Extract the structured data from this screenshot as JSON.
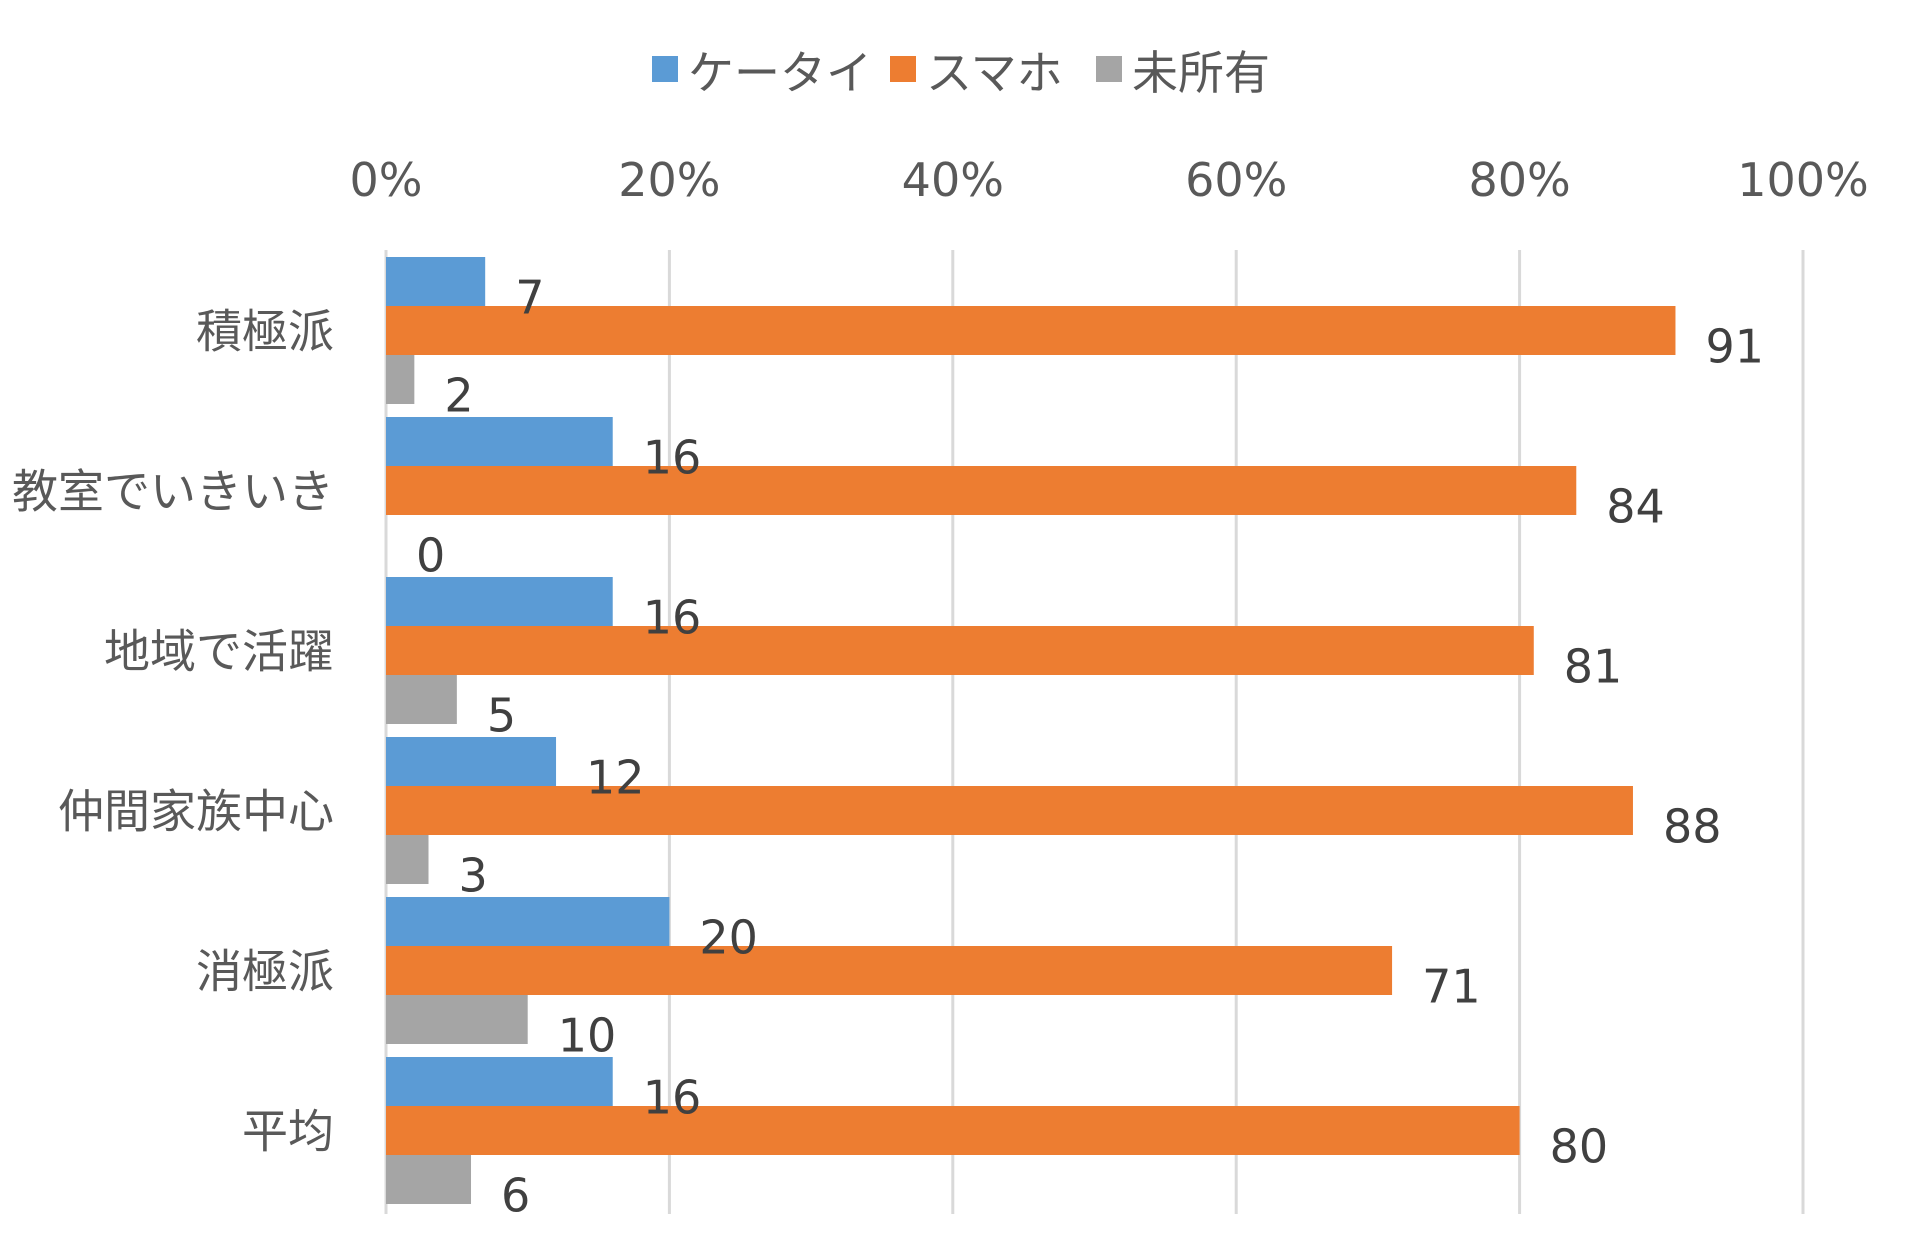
{
  "chart_data": {
    "type": "bar",
    "orientation": "horizontal",
    "categories": [
      "積極派",
      "教室でいきいき",
      "地域で活躍",
      "仲間家族中心",
      "消極派",
      "平均"
    ],
    "series": [
      {
        "name": "ケータイ",
        "color": "#5b9bd5",
        "values": [
          7,
          16,
          16,
          12,
          20,
          16
        ]
      },
      {
        "name": "スマホ",
        "color": "#ed7d31",
        "values": [
          91,
          84,
          81,
          88,
          71,
          80
        ]
      },
      {
        "name": "未所有",
        "color": "#a5a5a5",
        "values": [
          2,
          0,
          5,
          3,
          10,
          6
        ]
      }
    ],
    "xlim": [
      0,
      100
    ],
    "x_ticks": [
      "0%",
      "20%",
      "40%",
      "60%",
      "80%",
      "100%"
    ],
    "x_tick_values": [
      0,
      20,
      40,
      60,
      80,
      100
    ],
    "x_axis_position": "top",
    "grid": true,
    "legend_position": "top-center",
    "title": "",
    "xlabel": "",
    "ylabel": ""
  }
}
